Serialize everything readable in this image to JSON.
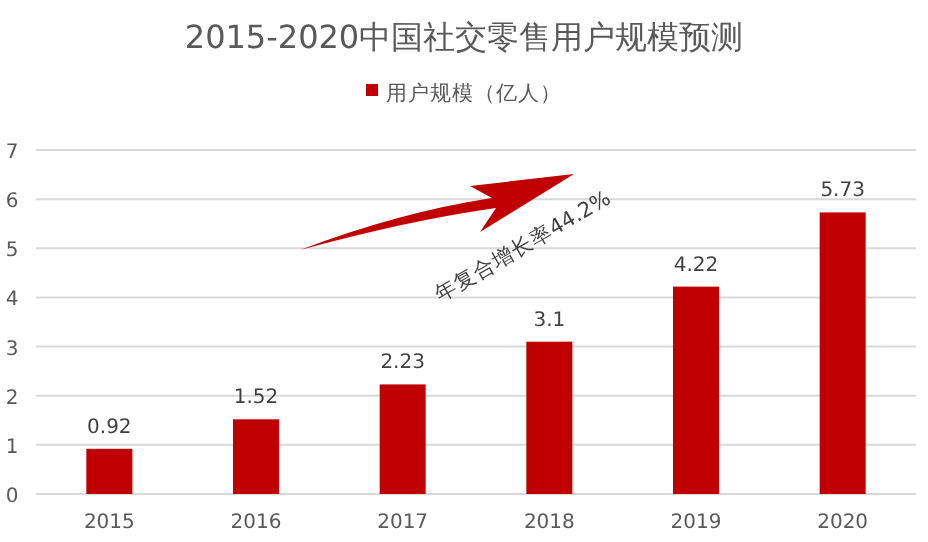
{
  "chart_data": {
    "type": "bar",
    "title": "2015-2020中国社交零售用户规模预测",
    "categories": [
      "2015",
      "2016",
      "2017",
      "2018",
      "2019",
      "2020"
    ],
    "series": [
      {
        "name": "用户规模（亿人）",
        "color": "#c00000",
        "values": [
          0.92,
          1.52,
          2.23,
          3.1,
          4.22,
          5.73
        ]
      }
    ],
    "ylim": [
      0,
      7
    ],
    "yticks": [
      0,
      1,
      2,
      3,
      4,
      5,
      6,
      7
    ],
    "grid": "y",
    "legend": "top",
    "data_labels": true,
    "annotations": [
      "年复合增长率44.2%"
    ]
  }
}
